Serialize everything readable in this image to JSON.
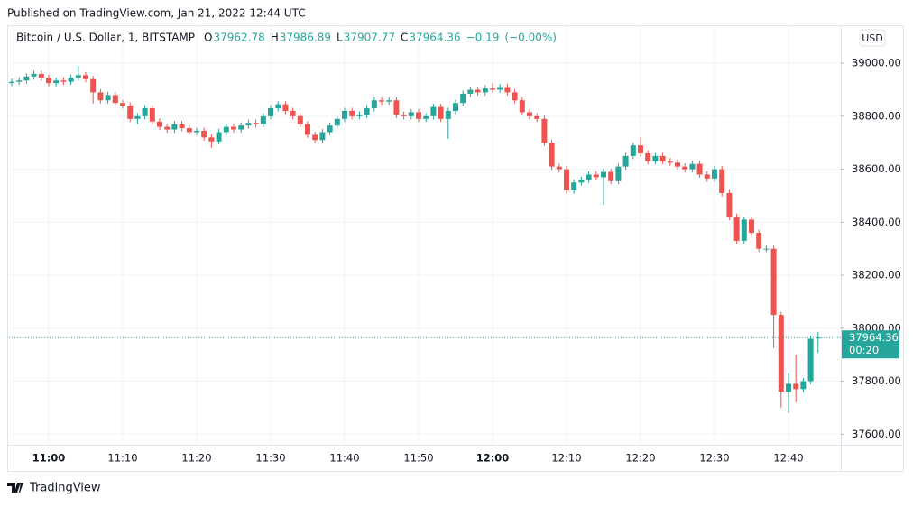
{
  "header": {
    "published": "Published on TradingView.com, Jan 21, 2022 12:44 UTC",
    "brand": "TradingView"
  },
  "chart_data": {
    "type": "candlestick",
    "title": "Bitcoin / U.S. Dollar, 1, BITSTAMP",
    "legend_labels": {
      "open": "O",
      "high": "H",
      "low": "L",
      "close": "C"
    },
    "change": "−0.19",
    "change_percent": "(−0.00%)",
    "currency": "USD",
    "countdown": "00:20",
    "up_color": "#26a69a",
    "down_color": "#ef5350",
    "grid": true,
    "last_price_line": true,
    "categories": [
      null,
      null,
      null,
      null,
      null,
      "11:00",
      null,
      null,
      null,
      null,
      null,
      null,
      null,
      null,
      null,
      "11:10",
      null,
      null,
      null,
      null,
      null,
      null,
      null,
      null,
      null,
      "11:20",
      null,
      null,
      null,
      null,
      null,
      null,
      null,
      null,
      null,
      "11:30",
      null,
      null,
      null,
      null,
      null,
      null,
      null,
      null,
      null,
      "11:40",
      null,
      null,
      null,
      null,
      null,
      null,
      null,
      null,
      null,
      "11:50",
      null,
      null,
      null,
      null,
      null,
      null,
      null,
      null,
      null,
      "12:00",
      null,
      null,
      null,
      null,
      null,
      null,
      null,
      null,
      null,
      "12:10",
      null,
      null,
      null,
      null,
      null,
      null,
      null,
      null,
      null,
      "12:20",
      null,
      null,
      null,
      null,
      null,
      null,
      null,
      null,
      null,
      "12:30",
      null,
      null,
      null,
      null,
      null,
      null,
      null,
      null,
      null,
      "12:40",
      null,
      null,
      null,
      null
    ],
    "open": [
      38925,
      38930,
      38935,
      38950,
      38960,
      38945,
      38925,
      38935,
      38930,
      38945,
      38955,
      38940,
      38890,
      38860,
      38880,
      38850,
      38840,
      38790,
      38800,
      38830,
      38780,
      38760,
      38750,
      38770,
      38755,
      38740,
      38745,
      38720,
      38705,
      38740,
      38760,
      38750,
      38765,
      38775,
      38770,
      38800,
      38830,
      38845,
      38820,
      38800,
      38770,
      38730,
      38710,
      38740,
      38765,
      38790,
      38820,
      38800,
      38805,
      38830,
      38860,
      38855,
      38860,
      38805,
      38800,
      38815,
      38790,
      38800,
      38835,
      38790,
      38820,
      38850,
      38885,
      38900,
      38890,
      38905,
      38900,
      38910,
      38890,
      38860,
      38815,
      38800,
      38790,
      38700,
      38610,
      38600,
      38520,
      38550,
      38560,
      38580,
      38570,
      38590,
      38555,
      38610,
      38650,
      38690,
      38660,
      38630,
      38650,
      38630,
      38625,
      38610,
      38600,
      38620,
      38580,
      38565,
      38600,
      38510,
      38420,
      38330,
      38410,
      38360,
      38300,
      38300,
      38050,
      37760,
      37790,
      37770,
      37800,
      37962.78
    ],
    "high": [
      38942,
      38947,
      38962,
      38972,
      38972,
      38957,
      38947,
      38947,
      38957,
      38990,
      38967,
      38952,
      38902,
      38892,
      38892,
      38862,
      38852,
      38812,
      38842,
      38842,
      38792,
      38772,
      38782,
      38782,
      38767,
      38757,
      38757,
      38732,
      38752,
      38772,
      38772,
      38777,
      38787,
      38787,
      38812,
      38842,
      38857,
      38857,
      38832,
      38812,
      38782,
      38742,
      38752,
      38777,
      38802,
      38832,
      38832,
      38817,
      38842,
      38872,
      38872,
      38872,
      38872,
      38817,
      38827,
      38827,
      38812,
      38847,
      38847,
      38832,
      38862,
      38897,
      38912,
      38912,
      38917,
      38925,
      38922,
      38922,
      38902,
      38872,
      38827,
      38812,
      38802,
      38712,
      38622,
      38612,
      38562,
      38572,
      38592,
      38592,
      38602,
      38602,
      38622,
      38662,
      38702,
      38720,
      38672,
      38662,
      38662,
      38642,
      38637,
      38622,
      38632,
      38632,
      38592,
      38612,
      38612,
      38522,
      38432,
      38422,
      38422,
      38372,
      38312,
      38312,
      38062,
      37830,
      37900,
      37812,
      37972,
      37986.89
    ],
    "low": [
      38913,
      38918,
      38923,
      38938,
      38933,
      38913,
      38913,
      38918,
      38918,
      38933,
      38928,
      38848,
      38848,
      38848,
      38838,
      38828,
      38778,
      38770,
      38788,
      38768,
      38748,
      38738,
      38738,
      38743,
      38728,
      38728,
      38708,
      38680,
      38693,
      38728,
      38738,
      38738,
      38753,
      38758,
      38758,
      38788,
      38818,
      38808,
      38788,
      38758,
      38718,
      38698,
      38698,
      38728,
      38753,
      38778,
      38788,
      38788,
      38793,
      38818,
      38843,
      38843,
      38793,
      38788,
      38788,
      38778,
      38778,
      38788,
      38778,
      38715,
      38808,
      38838,
      38873,
      38878,
      38878,
      38888,
      38888,
      38878,
      38848,
      38803,
      38788,
      38778,
      38688,
      38598,
      38588,
      38508,
      38508,
      38538,
      38548,
      38558,
      38465,
      38543,
      38543,
      38598,
      38638,
      38648,
      38618,
      38618,
      38618,
      38613,
      38598,
      38588,
      38588,
      38568,
      38553,
      38553,
      38498,
      38408,
      38318,
      38318,
      38348,
      38288,
      38288,
      37925,
      37700,
      37680,
      37720,
      37758,
      37788,
      37907.77
    ],
    "close": [
      38930,
      38935,
      38950,
      38960,
      38945,
      38925,
      38935,
      38930,
      38945,
      38955,
      38940,
      38890,
      38860,
      38880,
      38850,
      38840,
      38790,
      38800,
      38830,
      38780,
      38760,
      38750,
      38770,
      38755,
      38740,
      38745,
      38720,
      38705,
      38740,
      38760,
      38750,
      38765,
      38775,
      38770,
      38800,
      38830,
      38845,
      38820,
      38800,
      38770,
      38730,
      38710,
      38740,
      38765,
      38790,
      38820,
      38800,
      38805,
      38830,
      38860,
      38855,
      38860,
      38805,
      38800,
      38815,
      38790,
      38800,
      38835,
      38790,
      38820,
      38850,
      38885,
      38900,
      38890,
      38905,
      38900,
      38910,
      38890,
      38860,
      38815,
      38800,
      38790,
      38700,
      38610,
      38600,
      38520,
      38550,
      38560,
      38580,
      38570,
      38590,
      38555,
      38610,
      38650,
      38690,
      38660,
      38630,
      38650,
      38630,
      38625,
      38610,
      38600,
      38620,
      38580,
      38565,
      38600,
      38510,
      38420,
      38330,
      38410,
      38360,
      38300,
      38300,
      38050,
      37760,
      37790,
      37770,
      37800,
      37960,
      37964.36
    ],
    "ylim": [
      37560,
      39140
    ],
    "yticks": [
      {
        "value": 37600,
        "label": "37600.00"
      },
      {
        "value": 37800,
        "label": "37800.00"
      },
      {
        "value": 38000,
        "label": "38000.00"
      },
      {
        "value": 38200,
        "label": "38200.00"
      },
      {
        "value": 38400,
        "label": "38400.00"
      },
      {
        "value": 38600,
        "label": "38600.00"
      },
      {
        "value": 38800,
        "label": "38800.00"
      },
      {
        "value": 39000,
        "label": "39000.00"
      }
    ]
  }
}
